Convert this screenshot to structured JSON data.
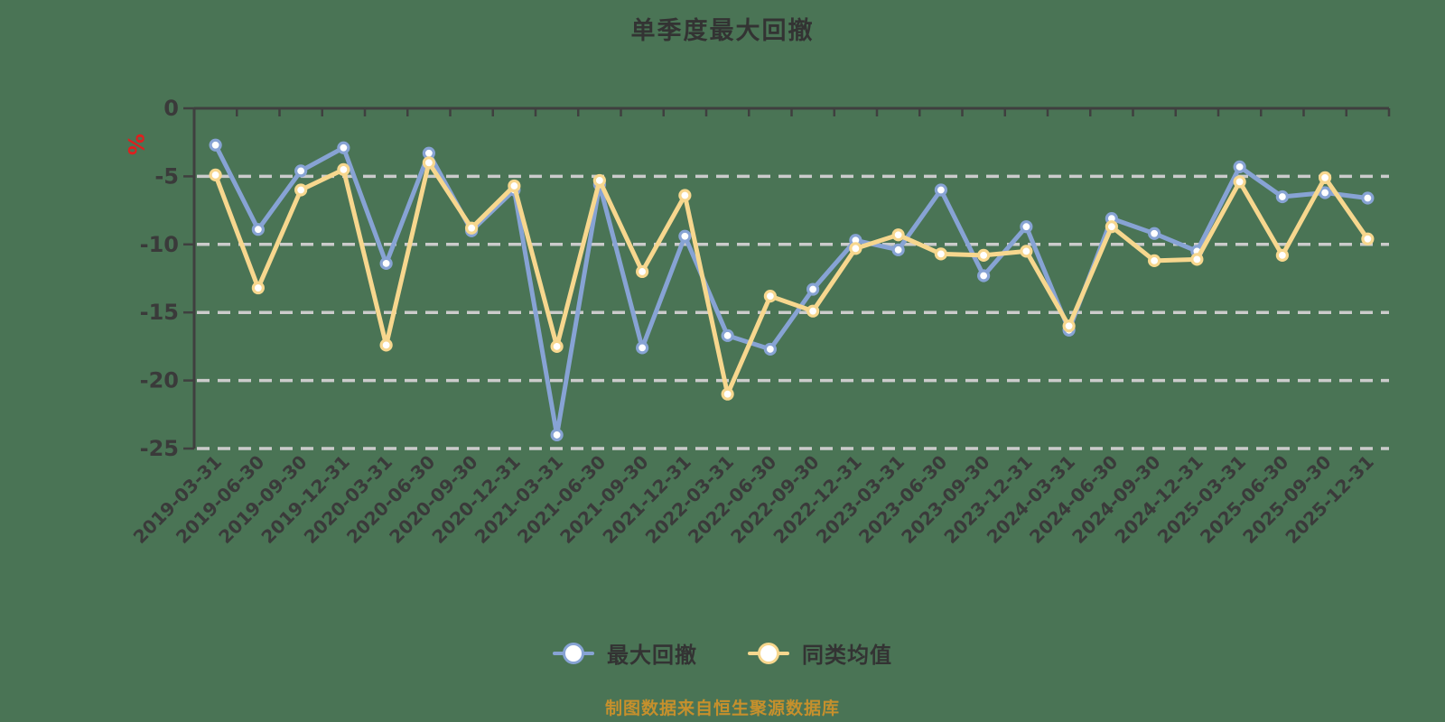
{
  "chart_data": {
    "type": "line",
    "title": "单季度最大回撤",
    "y_unit": "%",
    "footer_note": "制图数据来自恒生聚源数据库",
    "ylim": [
      -25,
      0
    ],
    "y_ticks": [
      0,
      -5,
      -10,
      -15,
      -20,
      -25
    ],
    "grid": "horizontal dashed gridlines on",
    "legend_position": "bottom-center",
    "x_label_rotation": 45,
    "categories": [
      "2019-03-31",
      "2019-06-30",
      "2019-09-30",
      "2019-12-31",
      "2020-03-31",
      "2020-06-30",
      "2020-09-30",
      "2020-12-31",
      "2021-03-31",
      "2021-06-30",
      "2021-09-30",
      "2021-12-31",
      "2022-03-31",
      "2022-06-30",
      "2022-09-30",
      "2022-12-31",
      "2023-03-31",
      "2023-06-30",
      "2023-09-30",
      "2023-12-31",
      "2024-03-31",
      "2024-06-30",
      "2024-09-30",
      "2024-12-31",
      "2025-03-31",
      "2025-06-30",
      "2025-09-30",
      "2025-12-31"
    ],
    "series": [
      {
        "name": "最大回撤",
        "color": "#87a3d4",
        "values": [
          -2.7,
          -8.9,
          -4.6,
          -2.9,
          -11.4,
          -3.3,
          -9.0,
          -6.0,
          -24.0,
          -5.6,
          -17.6,
          -9.4,
          -16.7,
          -17.7,
          -13.3,
          -9.7,
          -10.4,
          -6.0,
          -12.3,
          -8.7,
          -16.3,
          -8.1,
          -9.2,
          -10.5,
          -4.3,
          -6.5,
          -6.2,
          -6.6
        ]
      },
      {
        "name": "同类均值",
        "color": "#f7d78e",
        "values": [
          -4.9,
          -13.2,
          -6.0,
          -4.5,
          -17.4,
          -4.0,
          -8.8,
          -5.7,
          -17.5,
          -5.3,
          -12.0,
          -6.4,
          -21.0,
          -13.8,
          -14.9,
          -10.3,
          -9.3,
          -10.7,
          -10.8,
          -10.5,
          -16.0,
          -8.7,
          -11.2,
          -11.1,
          -5.4,
          -10.8,
          -5.1,
          -9.6
        ]
      }
    ]
  },
  "style": {
    "background_color": "#4a7455",
    "grid_color": "#cbcbcb",
    "axis_color": "#3f3f3f",
    "tick_label_color": "#3a3a3a",
    "title_color": "#333333",
    "unit_label_color": "#e01e1e",
    "footer_color": "#c6902c",
    "marker_fill": "#ffffff"
  }
}
